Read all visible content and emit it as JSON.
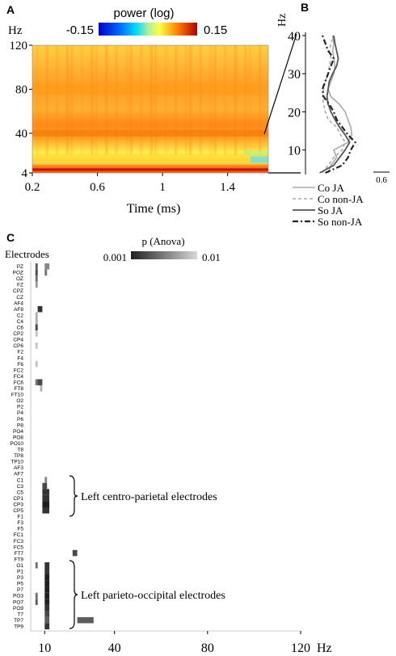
{
  "panel_a": {
    "letter": "A",
    "colorbar_label": "power (log)",
    "colorbar_min_label": "-0.15",
    "colorbar_max_label": "0.15",
    "y_unit": "Hz",
    "y_ticks": [
      "120",
      "80",
      "40",
      "4"
    ],
    "x_ticks": [
      "0.2",
      "0.6",
      "1",
      "1.4"
    ],
    "xlabel": "Time (ms)"
  },
  "panel_b": {
    "letter": "B",
    "y_unit": "Hz",
    "y_ticks": [
      "40",
      "30",
      "20",
      "10"
    ],
    "scale_label": "0.6",
    "legend": [
      "Co JA",
      "Co non-JA",
      "So JA",
      "So non-JA"
    ],
    "colors": [
      "#aaaaaa",
      "#aaaaaa",
      "#555555",
      "#222222"
    ]
  },
  "panel_c": {
    "letter": "C",
    "row_header": "Electrodes",
    "colorbar_label": "p (Anova)",
    "colorbar_min_label": "0.001",
    "colorbar_max_label": "0.01",
    "x_ticks": [
      "10",
      "40",
      "80",
      "120"
    ],
    "x_unit": "Hz",
    "annotations": [
      "Left centro-parietal electrodes",
      "Left parieto-occipital electrodes"
    ]
  },
  "chart_data": [
    {
      "type": "heatmap",
      "panel": "A",
      "x_range": [
        0.2,
        1.65
      ],
      "y_range": [
        4,
        120
      ],
      "color_range": [
        -0.15,
        0.15
      ],
      "bands": [
        {
          "freq": 7,
          "level": 0.14
        },
        {
          "freq": 13,
          "level": 0.02
        },
        {
          "freq": 20,
          "level": 0.05
        },
        {
          "freq": 40,
          "level": 0.1
        },
        {
          "freq": 80,
          "level": 0.08
        }
      ]
    },
    {
      "type": "line",
      "panel": "B",
      "y_range": [
        4,
        40
      ],
      "series": [
        {
          "name": "Co JA",
          "freqs": [
            4,
            6,
            8,
            10,
            12,
            14,
            16,
            18,
            20,
            22,
            24,
            26,
            28,
            30,
            32,
            34,
            36,
            38,
            40
          ],
          "values": [
            0.2,
            0.25,
            0.35,
            0.3,
            0.55,
            0.62,
            0.6,
            0.55,
            0.5,
            0.4,
            0.25,
            0.2,
            0.25,
            0.3,
            0.32,
            0.3,
            0.28,
            0.3,
            0.28
          ]
        },
        {
          "name": "Co non-JA",
          "freqs": [
            4,
            6,
            8,
            10,
            12,
            14,
            16,
            18,
            20,
            22,
            24,
            26,
            28,
            30,
            32,
            34,
            36,
            38,
            40
          ],
          "values": [
            0.1,
            0.2,
            0.3,
            0.45,
            0.5,
            0.42,
            0.35,
            0.2,
            0.15,
            0.12,
            0.1,
            0.12,
            0.15,
            0.2,
            0.22,
            0.25,
            0.22,
            0.25,
            0.3
          ]
        },
        {
          "name": "So JA",
          "freqs": [
            4,
            6,
            8,
            10,
            12,
            14,
            16,
            18,
            20,
            22,
            24,
            26,
            28,
            30,
            32,
            34,
            36,
            38,
            40
          ],
          "values": [
            0.05,
            0.3,
            0.4,
            0.5,
            0.58,
            0.5,
            0.4,
            0.32,
            0.25,
            0.2,
            0.18,
            0.2,
            0.22,
            0.28,
            0.35,
            0.38,
            0.35,
            0.32,
            0.3
          ]
        },
        {
          "name": "So non-JA",
          "freqs": [
            4,
            6,
            8,
            10,
            12,
            14,
            16,
            18,
            20,
            22,
            24,
            26,
            28,
            30,
            32,
            34,
            36,
            38,
            40
          ],
          "values": [
            0.15,
            0.45,
            0.55,
            0.6,
            0.68,
            0.55,
            0.45,
            0.35,
            0.3,
            0.22,
            0.12,
            0.1,
            0.15,
            0.2,
            0.25,
            0.3,
            0.2,
            0.15,
            0.1
          ]
        }
      ]
    },
    {
      "type": "heatmap",
      "panel": "C",
      "x_range": [
        4,
        120
      ],
      "p_range": [
        0.001,
        0.01
      ],
      "rows": [
        "PZ",
        "POZ",
        "OZ",
        "FZ",
        "CPZ",
        "CZ",
        "AF4",
        "AF8",
        "C2",
        "C4",
        "C6",
        "CP2",
        "CP4",
        "CP6",
        "F2",
        "F4",
        "F6",
        "FC2",
        "FC4",
        "FC6",
        "FT8",
        "FT10",
        "O2",
        "P2",
        "P4",
        "P6",
        "P8",
        "PO4",
        "PO8",
        "PO10",
        "T8",
        "TP8",
        "TP10",
        "AF3",
        "AF7",
        "C1",
        "C3",
        "C5",
        "CP1",
        "CP3",
        "CP5",
        "F1",
        "F3",
        "F5",
        "FC1",
        "FC3",
        "FC5",
        "FT7",
        "FT9",
        "O1",
        "P1",
        "P3",
        "P5",
        "P7",
        "PO3",
        "PO7",
        "PO9",
        "T7",
        "TP7",
        "TP9"
      ],
      "cells": [
        {
          "row": "PZ",
          "f0": 6,
          "f1": 7,
          "p": 0.004
        },
        {
          "row": "PZ",
          "f0": 10,
          "f1": 12,
          "p": 0.006
        },
        {
          "row": "POZ",
          "f0": 6,
          "f1": 7,
          "p": 0.003
        },
        {
          "row": "POZ",
          "f0": 10,
          "f1": 11,
          "p": 0.005
        },
        {
          "row": "OZ",
          "f0": 6,
          "f1": 7,
          "p": 0.005
        },
        {
          "row": "FZ",
          "f0": 6,
          "f1": 7,
          "p": 0.007
        },
        {
          "row": "AF8",
          "f0": 7,
          "f1": 9,
          "p": 0.002
        },
        {
          "row": "C2",
          "f0": 6,
          "f1": 7,
          "p": 0.008
        },
        {
          "row": "C4",
          "f0": 6,
          "f1": 7,
          "p": 0.008
        },
        {
          "row": "C6",
          "f0": 6,
          "f1": 7,
          "p": 0.003
        },
        {
          "row": "CP2",
          "f0": 6,
          "f1": 7,
          "p": 0.009
        },
        {
          "row": "CP6",
          "f0": 6,
          "f1": 7,
          "p": 0.009
        },
        {
          "row": "F6",
          "f0": 6,
          "f1": 7,
          "p": 0.009
        },
        {
          "row": "FC6",
          "f0": 6,
          "f1": 7,
          "p": 0.005
        },
        {
          "row": "FC6",
          "f0": 7,
          "f1": 9,
          "p": 0.003
        },
        {
          "row": "FT8",
          "f0": 8,
          "f1": 9,
          "p": 0.008
        },
        {
          "row": "C1",
          "f0": 10,
          "f1": 11,
          "p": 0.006
        },
        {
          "row": "C3",
          "f0": 9,
          "f1": 11,
          "p": 0.003
        },
        {
          "row": "C5",
          "f0": 9,
          "f1": 12,
          "p": 0.002
        },
        {
          "row": "CP1",
          "f0": 9,
          "f1": 12,
          "p": 0.002
        },
        {
          "row": "CP3",
          "f0": 9,
          "f1": 12,
          "p": 0.001
        },
        {
          "row": "CP5",
          "f0": 9,
          "f1": 12,
          "p": 0.002
        },
        {
          "row": "FT7",
          "f0": 22,
          "f1": 24,
          "p": 0.003
        },
        {
          "row": "O1",
          "f0": 6,
          "f1": 7,
          "p": 0.005
        },
        {
          "row": "O1",
          "f0": 10,
          "f1": 12,
          "p": 0.002
        },
        {
          "row": "P1",
          "f0": 10,
          "f1": 12,
          "p": 0.002
        },
        {
          "row": "P3",
          "f0": 10,
          "f1": 12,
          "p": 0.001
        },
        {
          "row": "P5",
          "f0": 10,
          "f1": 12,
          "p": 0.001
        },
        {
          "row": "P7",
          "f0": 10,
          "f1": 12,
          "p": 0.001
        },
        {
          "row": "PO3",
          "f0": 6,
          "f1": 7,
          "p": 0.005
        },
        {
          "row": "PO3",
          "f0": 10,
          "f1": 12,
          "p": 0.001
        },
        {
          "row": "PO7",
          "f0": 6,
          "f1": 7,
          "p": 0.004
        },
        {
          "row": "PO7",
          "f0": 10,
          "f1": 12,
          "p": 0.001
        },
        {
          "row": "PO9",
          "f0": 10,
          "f1": 12,
          "p": 0.002
        },
        {
          "row": "T7",
          "f0": 10,
          "f1": 12,
          "p": 0.003
        },
        {
          "row": "TP7",
          "f0": 10,
          "f1": 12,
          "p": 0.004
        },
        {
          "row": "TP7",
          "f0": 24,
          "f1": 31,
          "p": 0.004
        },
        {
          "row": "TP9",
          "f0": 10,
          "f1": 12,
          "p": 0.002
        }
      ]
    }
  ]
}
